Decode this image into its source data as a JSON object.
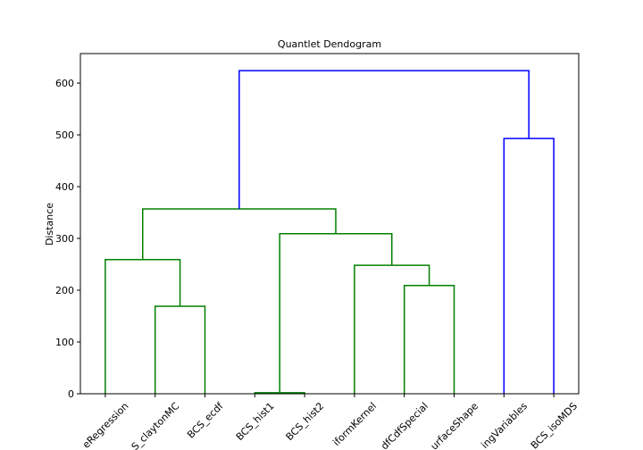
{
  "chart_data": {
    "type": "dendrogram",
    "title": "Quantlet Dendogram",
    "ylabel": "Distance",
    "xlim": [
      0,
      100
    ],
    "ylim": [
      0,
      657
    ],
    "yticks": [
      0,
      100,
      200,
      300,
      400,
      500,
      600
    ],
    "xticks": [
      {
        "value": 5,
        "label": "eRegression"
      },
      {
        "value": 15,
        "label": "S_claytonMC"
      },
      {
        "value": 25,
        "label": "BCS_ecdf"
      },
      {
        "value": 35,
        "label": "BCS_hist1"
      },
      {
        "value": 45,
        "label": "BCS_hist2"
      },
      {
        "value": 55,
        "label": "iformKernel"
      },
      {
        "value": 65,
        "label": "dfCdfSpecial"
      },
      {
        "value": 75,
        "label": "urfaceShape"
      },
      {
        "value": 85,
        "label": "ingVariables"
      },
      {
        "value": 95,
        "label": "BCS_isoMDS"
      }
    ],
    "links": [
      {
        "x": [
          35,
          35,
          45,
          45
        ],
        "y": [
          0,
          2,
          2,
          0
        ],
        "color": "#008000"
      },
      {
        "x": [
          15,
          15,
          25,
          25
        ],
        "y": [
          0,
          169,
          169,
          0
        ],
        "color": "#008000"
      },
      {
        "x": [
          5,
          5,
          20,
          20
        ],
        "y": [
          0,
          259,
          259,
          169
        ],
        "color": "#008000"
      },
      {
        "x": [
          65,
          65,
          75,
          75
        ],
        "y": [
          0,
          209,
          209,
          0
        ],
        "color": "#008000"
      },
      {
        "x": [
          55,
          55,
          70,
          70
        ],
        "y": [
          0,
          248,
          248,
          209
        ],
        "color": "#008000"
      },
      {
        "x": [
          40,
          40,
          62.5,
          62.5
        ],
        "y": [
          2,
          309,
          309,
          248
        ],
        "color": "#008000"
      },
      {
        "x": [
          12.5,
          12.5,
          51.25,
          51.25
        ],
        "y": [
          259,
          357,
          357,
          309
        ],
        "color": "#008000"
      },
      {
        "x": [
          85,
          85,
          95,
          95
        ],
        "y": [
          0,
          493,
          493,
          0
        ],
        "color": "#0000ff"
      },
      {
        "x": [
          31.875,
          31.875,
          90,
          90
        ],
        "y": [
          357,
          624,
          624,
          493
        ],
        "color": "#0000ff"
      }
    ]
  }
}
